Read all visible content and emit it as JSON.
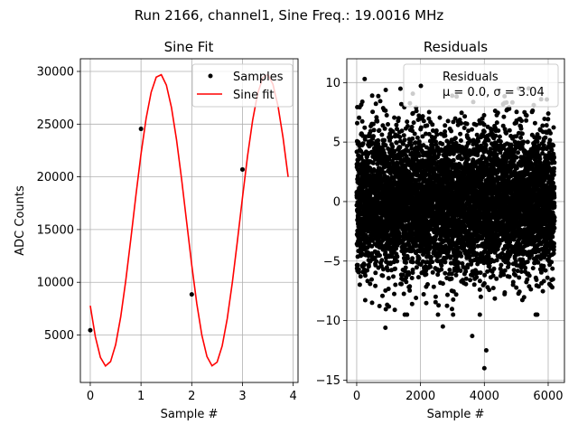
{
  "figure": {
    "suptitle": "Run 2166, channel1, Sine Freq.: 19.0016 MHz"
  },
  "colors": {
    "fit": "#ff0000",
    "points": "#000000",
    "grid": "#b0b0b0"
  },
  "chart_data": [
    {
      "type": "line",
      "title": "Sine Fit",
      "xlabel": "Sample #",
      "ylabel": "ADC Counts",
      "xlim": [
        -0.195,
        4.095
      ],
      "ylim": [
        500,
        31200
      ],
      "xticks": [
        0,
        1,
        2,
        3,
        4
      ],
      "xtick_labels": [
        "0",
        "1",
        "2",
        "3",
        "4"
      ],
      "yticks": [
        5000,
        10000,
        15000,
        20000,
        25000,
        30000
      ],
      "ytick_labels": [
        "5000",
        "10000",
        "15000",
        "20000",
        "25000",
        "30000"
      ],
      "grid": true,
      "legend": {
        "location": "top-right",
        "entries": [
          "Samples",
          "Sine fit"
        ]
      },
      "series": [
        {
          "name": "Samples",
          "kind": "scatter",
          "x": [
            0,
            1,
            2,
            3
          ],
          "y": [
            5450,
            24550,
            8850,
            20700
          ]
        },
        {
          "name": "Sine fit",
          "kind": "line",
          "model": {
            "offset": 15900,
            "amplitude": 13850,
            "period": 2.1053,
            "phase_deg": -144.1
          },
          "x_range": [
            0,
            3.9
          ],
          "x_step": 0.1
        }
      ]
    },
    {
      "type": "scatter",
      "title": "Residuals",
      "xlabel": "Sample #",
      "ylabel": "",
      "xlim": [
        -310,
        6510
      ],
      "ylim": [
        -15.2,
        12.0
      ],
      "xticks": [
        0,
        2000,
        4000,
        6000
      ],
      "xtick_labels": [
        "0",
        "2000",
        "4000",
        "6000"
      ],
      "yticks": [
        -15,
        -10,
        -5,
        0,
        5,
        10
      ],
      "ytick_labels": [
        "−15",
        "−10",
        "−5",
        "0",
        "5",
        "10"
      ],
      "grid": true,
      "legend": {
        "location": "top-right",
        "entries": [
          "Residuals",
          "μ = 0.0, σ = 3.04"
        ]
      },
      "series": [
        {
          "name": "Residuals",
          "kind": "scatter",
          "n_points": 6200,
          "mean": 0.0,
          "std": 3.04,
          "extremes": [
            [
              4000,
              -14.0
            ],
            [
              4060,
              -12.5
            ],
            [
              250,
              10.3
            ],
            [
              2700,
              -10.5
            ],
            [
              900,
              -10.6
            ],
            [
              3620,
              -11.3
            ]
          ]
        }
      ]
    }
  ]
}
